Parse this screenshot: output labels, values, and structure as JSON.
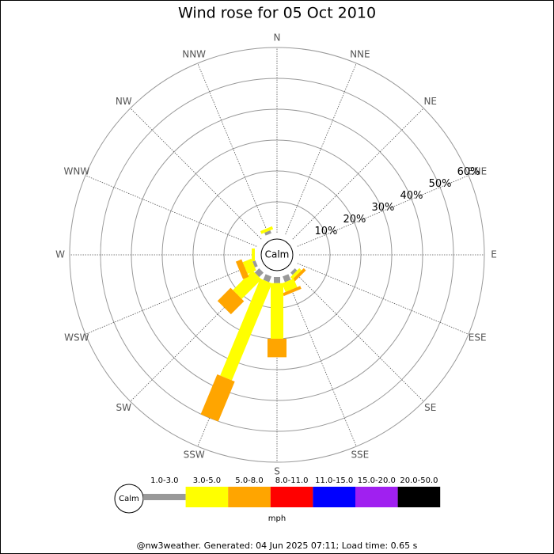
{
  "chart_data": {
    "type": "windrose",
    "title": "Wind rose for 05 Oct 2010",
    "center_label": "Calm",
    "categories": [
      "N",
      "NNE",
      "NE",
      "ENE",
      "E",
      "ESE",
      "SE",
      "SSE",
      "S",
      "SSW",
      "SW",
      "WSW",
      "W",
      "WNW",
      "NW",
      "NNW"
    ],
    "series": [
      {
        "name": "1.0-3.0",
        "color": "#999999",
        "values": [
          0,
          0,
          0,
          0,
          0,
          0,
          1,
          2,
          2,
          2,
          2,
          1,
          0,
          0,
          0,
          1
        ]
      },
      {
        "name": "3.0-5.0",
        "color": "#ffff00",
        "values": [
          0,
          0,
          0,
          0,
          0,
          0,
          1,
          3,
          18,
          34,
          9,
          3,
          1,
          0,
          0,
          1
        ]
      },
      {
        "name": "5.0-8.0",
        "color": "#ffa500",
        "values": [
          0,
          0,
          0,
          0,
          0,
          0,
          1,
          1,
          6,
          14,
          6,
          2,
          0,
          0,
          0,
          0
        ]
      },
      {
        "name": "8.0-11.0",
        "color": "#ff0000",
        "values": [
          0,
          0,
          0,
          0,
          0,
          0,
          0,
          0,
          0,
          0,
          0,
          0,
          0,
          0,
          0,
          0
        ]
      },
      {
        "name": "11.0-15.0",
        "color": "#0000ff",
        "values": [
          0,
          0,
          0,
          0,
          0,
          0,
          0,
          0,
          0,
          0,
          0,
          0,
          0,
          0,
          0,
          0
        ]
      },
      {
        "name": "15.0-20.0",
        "color": "#a020f0",
        "values": [
          0,
          0,
          0,
          0,
          0,
          0,
          0,
          0,
          0,
          0,
          0,
          0,
          0,
          0,
          0,
          0
        ]
      },
      {
        "name": "20.0-50.0",
        "color": "#000000",
        "values": [
          0,
          0,
          0,
          0,
          0,
          0,
          0,
          0,
          0,
          0,
          0,
          0,
          0,
          0,
          0,
          0
        ]
      }
    ],
    "rlim": [
      0,
      60
    ],
    "rticks": [
      {
        "value": 10,
        "label": "10%"
      },
      {
        "value": 20,
        "label": "20%"
      },
      {
        "value": 30,
        "label": "30%"
      },
      {
        "value": 40,
        "label": "40%"
      },
      {
        "value": 50,
        "label": "50%"
      },
      {
        "value": 60,
        "label": "60%"
      }
    ],
    "legend_unit": "mph",
    "footer": "@nw3weather. Generated: 04 Jun 2025 07:11; Load time: 0.65 s"
  }
}
